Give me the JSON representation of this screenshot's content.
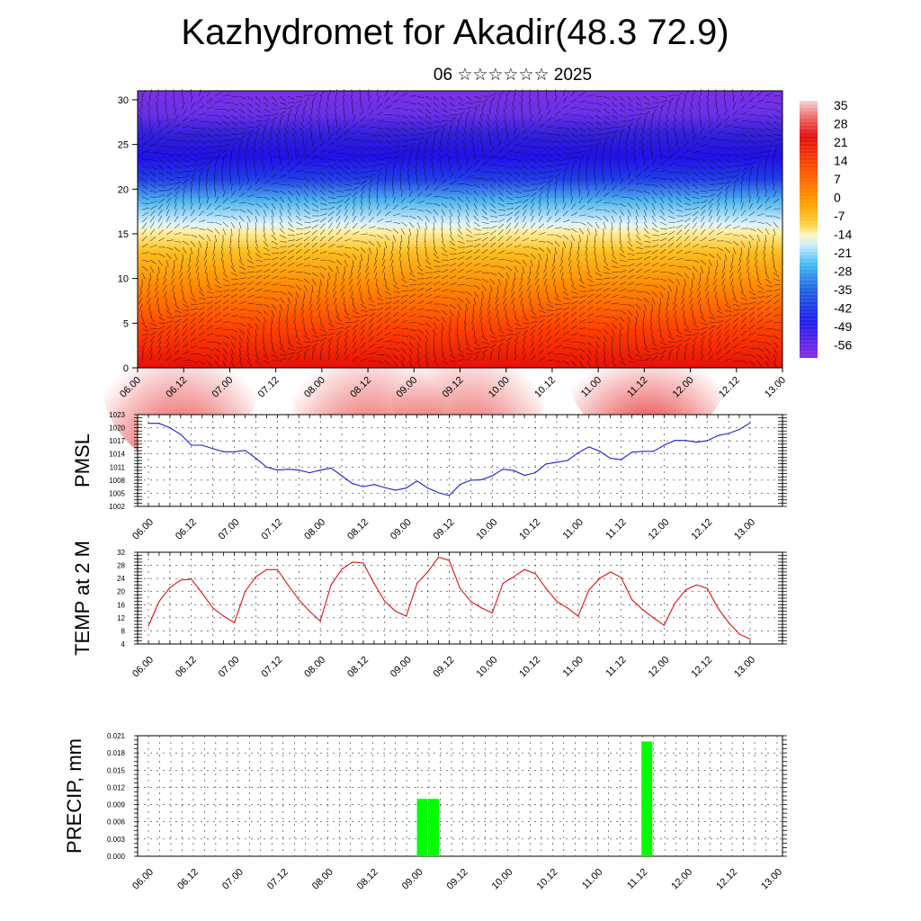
{
  "title": "Kazhydromet for Akadir(48.3 72.9)",
  "subtitle": "06 ☆☆☆☆☆☆ 2025",
  "colors": {
    "pmsl_line": "#1f1fd6",
    "temp_line": "#e01010",
    "precip_bar": "#00ff00",
    "grid": "#000000"
  },
  "chart_data": [
    {
      "type": "heatmap",
      "title": "",
      "xlabel": "",
      "ylabel": "",
      "x_tick_labels": [
        "06.00",
        "06.12",
        "07.00",
        "07.12",
        "08.00",
        "08.12",
        "09.00",
        "09.12",
        "10.00",
        "10.12",
        "11.00",
        "11.12",
        "12.00",
        "12.12",
        "13.00"
      ],
      "y_ticks": [
        0,
        5,
        10,
        15,
        20,
        25,
        30
      ],
      "ylim": [
        0,
        31
      ],
      "colorbar_labels": [
        "35",
        "28",
        "21",
        "14",
        "7",
        "0",
        "-7",
        "-14",
        "-21",
        "-28",
        "-35",
        "-42",
        "-49",
        "-56"
      ],
      "description_overlay": "wind barbs",
      "level_temperatures": [
        {
          "level": 0,
          "temp": 30
        },
        {
          "level": 5,
          "temp": 22
        },
        {
          "level": 10,
          "temp": 10
        },
        {
          "level": 14,
          "temp": -7
        },
        {
          "level": 17,
          "temp": -20
        },
        {
          "level": 20,
          "temp": -35
        },
        {
          "level": 23,
          "temp": -56
        },
        {
          "level": 26,
          "temp": -52
        },
        {
          "level": 31,
          "temp": -55
        }
      ]
    },
    {
      "type": "line",
      "ylabel": "PMSL",
      "ylim": [
        1002,
        1023
      ],
      "y_ticks": [
        "1002",
        "1005",
        "1008",
        "1011",
        "1014",
        "1017",
        "1020",
        "1023"
      ],
      "x_tick_labels": [
        "06.00",
        "06.12",
        "07.00",
        "07.12",
        "08.00",
        "08.12",
        "09.00",
        "09.12",
        "10.00",
        "10.12",
        "11.00",
        "11.12",
        "12.00",
        "12.12",
        "13.00"
      ],
      "series": [
        {
          "values": [
            1021.0,
            1021.0,
            1020.0,
            1018.5,
            1016.0,
            1016.0,
            1015.2,
            1014.5,
            1014.5,
            1014.8,
            1013.0,
            1011.0,
            1010.3,
            1010.5,
            1010.3,
            1009.7,
            1010.3,
            1010.8,
            1009.0,
            1007.2,
            1006.5,
            1007.0,
            1006.3,
            1005.7,
            1006.2,
            1007.8,
            1006.2,
            1005.1,
            1004.5,
            1007.0,
            1008.0,
            1008.1,
            1009.0,
            1010.5,
            1010.2,
            1009.1,
            1009.7,
            1011.7,
            1012.1,
            1012.5,
            1014.3,
            1015.6,
            1014.6,
            1013.0,
            1012.7,
            1014.4,
            1014.6,
            1014.6,
            1016.0,
            1017.1,
            1017.1,
            1016.7,
            1017.0,
            1018.2,
            1018.7,
            1019.6,
            1021.1
          ]
        }
      ]
    },
    {
      "type": "line",
      "ylabel": "TEMP at 2 M",
      "ylim": [
        4,
        32
      ],
      "y_ticks": [
        "4",
        "8",
        "12",
        "16",
        "20",
        "24",
        "28",
        "32"
      ],
      "x_tick_labels": [
        "06.00",
        "06.12",
        "07.00",
        "07.12",
        "08.00",
        "08.12",
        "09.00",
        "09.12",
        "10.00",
        "10.12",
        "11.00",
        "11.12",
        "12.00",
        "12.12",
        "13.00"
      ],
      "series": [
        {
          "values": [
            9.5,
            17.0,
            21.2,
            23.5,
            23.8,
            19.5,
            15.0,
            12.5,
            10.5,
            20.0,
            24.5,
            26.7,
            26.7,
            22.0,
            17.5,
            14.0,
            11.0,
            22.0,
            26.8,
            29.0,
            28.7,
            22.5,
            17.0,
            14.0,
            12.5,
            22.5,
            26.0,
            30.5,
            29.5,
            21.0,
            17.0,
            15.0,
            13.5,
            22.5,
            24.5,
            26.7,
            25.5,
            21.0,
            17.0,
            15.0,
            12.5,
            20.5,
            24.0,
            26.0,
            24.3,
            17.5,
            14.5,
            12.0,
            9.7,
            16.5,
            20.5,
            22.0,
            21.0,
            15.0,
            10.5,
            7.0,
            5.5
          ]
        }
      ]
    },
    {
      "type": "bar",
      "ylabel": "PRECIP, mm",
      "ylim": [
        0,
        0.021
      ],
      "y_ticks": [
        "0.000",
        "0.003",
        "0.006",
        "0.009",
        "0.012",
        "0.015",
        "0.018",
        "0.021"
      ],
      "x_tick_labels": [
        "06.00",
        "06.12",
        "07.00",
        "07.12",
        "08.00",
        "08.12",
        "09.00",
        "09.12",
        "10.00",
        "10.12",
        "11.00",
        "11.12",
        "12.00",
        "12.12",
        "13.00"
      ],
      "categories": [
        "09.00",
        "09.03",
        "11.12"
      ],
      "values": [
        0.01,
        0.01,
        0.02
      ]
    }
  ]
}
